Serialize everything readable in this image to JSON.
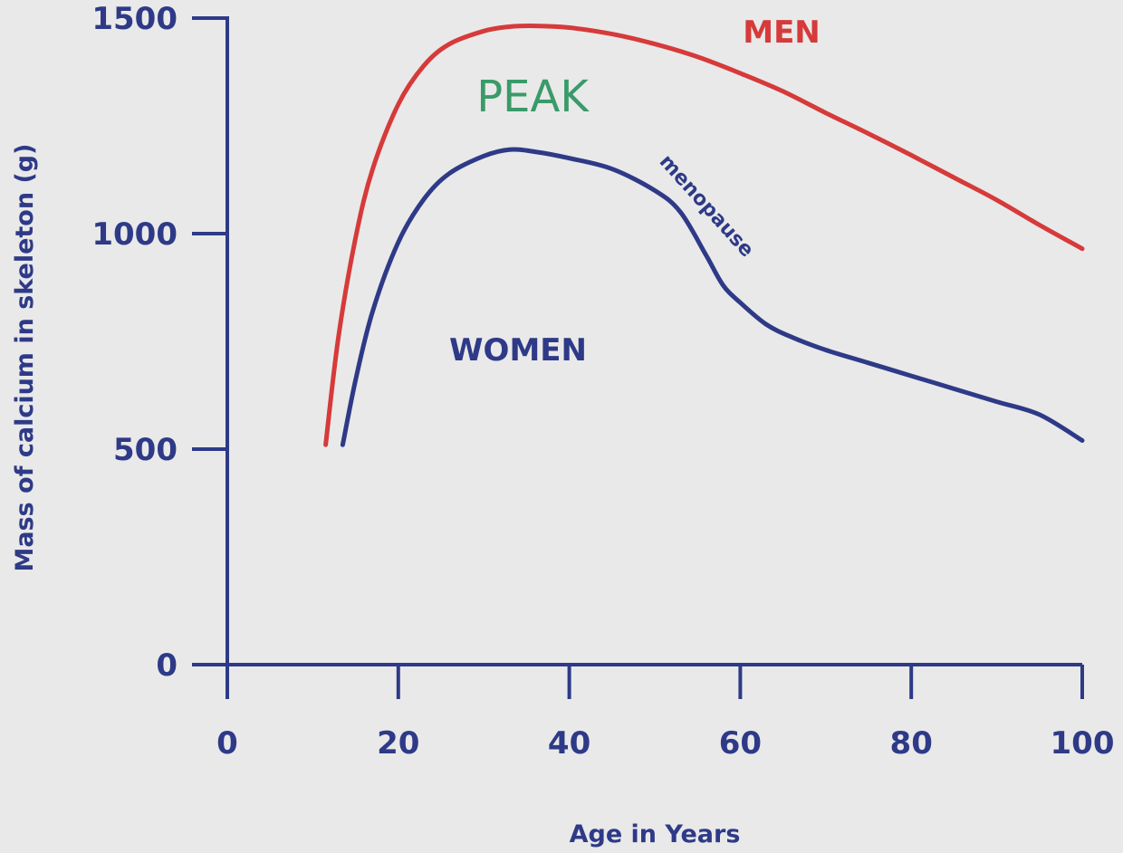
{
  "chart_data": {
    "type": "line",
    "title": "",
    "xlabel": "Age in Years",
    "ylabel": "Mass of calcium in skeleton  (g)",
    "xlim": [
      0,
      100
    ],
    "ylim": [
      0,
      1500
    ],
    "x_ticks": [
      0,
      20,
      40,
      60,
      80,
      100
    ],
    "y_ticks": [
      0,
      500,
      1000,
      1500
    ],
    "grid": false,
    "axis_color": "#2e3a87",
    "series": [
      {
        "name": "MEN",
        "color": "#d63a3a",
        "x": [
          11.5,
          13,
          15,
          17,
          20,
          23,
          26,
          30,
          33,
          36,
          40,
          45,
          50,
          55,
          60,
          65,
          70,
          75,
          80,
          85,
          90,
          95,
          100
        ],
        "values": [
          510,
          760,
          990,
          1150,
          1300,
          1390,
          1440,
          1470,
          1480,
          1482,
          1478,
          1463,
          1440,
          1410,
          1372,
          1330,
          1280,
          1232,
          1182,
          1130,
          1078,
          1020,
          965
        ]
      },
      {
        "name": "WOMEN",
        "color": "#2e3a87",
        "x": [
          13.5,
          15,
          17,
          20,
          23,
          26,
          30,
          33,
          36,
          40,
          45,
          50,
          53,
          56,
          58,
          60,
          63,
          66,
          70,
          75,
          80,
          85,
          90,
          95,
          100
        ],
        "values": [
          510,
          660,
          820,
          980,
          1080,
          1140,
          1180,
          1195,
          1190,
          1175,
          1150,
          1100,
          1050,
          950,
          880,
          840,
          790,
          760,
          730,
          700,
          670,
          640,
          610,
          580,
          520
        ]
      }
    ],
    "annotations": [
      {
        "text": "PEAK",
        "x": 34,
        "y": 1340,
        "color": "#3a9a6a"
      },
      {
        "text": "menopause",
        "x": 55.5,
        "y": 1100,
        "color": "#2e3a87"
      }
    ]
  }
}
